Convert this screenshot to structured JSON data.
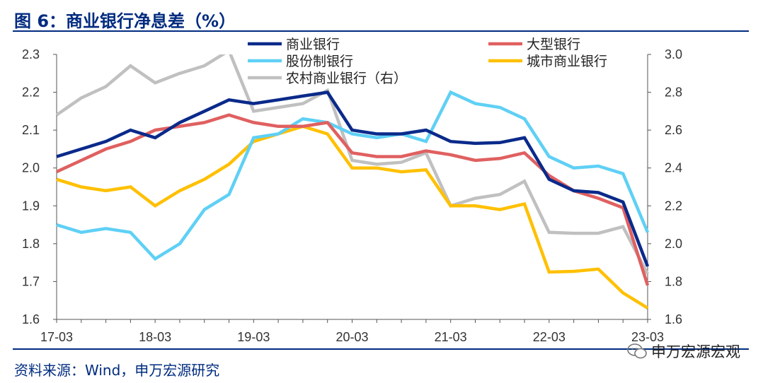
{
  "header": {
    "title": "图 6：商业银行净息差（%）"
  },
  "footer": {
    "source": "资料来源：Wind，申万宏源研究",
    "watermark": "申万宏源宏观"
  },
  "chart_data": {
    "type": "line",
    "x": [
      "17-03",
      "17-06",
      "17-09",
      "17-12",
      "18-03",
      "18-06",
      "18-09",
      "18-12",
      "19-03",
      "19-06",
      "19-09",
      "19-12",
      "20-03",
      "20-06",
      "20-09",
      "20-12",
      "21-03",
      "21-06",
      "21-09",
      "21-12",
      "22-03",
      "22-06",
      "22-09",
      "22-12",
      "23-03"
    ],
    "xticks": [
      "17-03",
      "18-03",
      "19-03",
      "20-03",
      "21-03",
      "22-03",
      "23-03"
    ],
    "y_left": {
      "ylim": [
        1.6,
        2.3
      ],
      "ticks": [
        "1.6",
        "1.7",
        "1.8",
        "1.9",
        "2.0",
        "2.1",
        "2.2",
        "2.3"
      ]
    },
    "y_right": {
      "ylim": [
        1.6,
        3.0
      ],
      "ticks": [
        "1.6",
        "1.8",
        "2.0",
        "2.2",
        "2.4",
        "2.6",
        "2.8",
        "3.0"
      ]
    },
    "legend_position": "top",
    "series": [
      {
        "name": "商业银行",
        "axis": "left",
        "color": "#0a2a8a",
        "values": [
          2.03,
          2.05,
          2.07,
          2.1,
          2.08,
          2.12,
          2.15,
          2.18,
          2.17,
          2.18,
          2.19,
          2.2,
          2.1,
          2.09,
          2.09,
          2.1,
          2.07,
          2.065,
          2.067,
          2.08,
          1.97,
          1.94,
          1.935,
          1.91,
          1.74
        ]
      },
      {
        "name": "大型银行",
        "axis": "left",
        "color": "#e06060",
        "values": [
          1.99,
          2.02,
          2.05,
          2.07,
          2.1,
          2.11,
          2.12,
          2.14,
          2.12,
          2.11,
          2.11,
          2.12,
          2.04,
          2.03,
          2.03,
          2.045,
          2.035,
          2.02,
          2.025,
          2.04,
          1.98,
          1.94,
          1.92,
          1.895,
          1.69
        ]
      },
      {
        "name": "股份制银行",
        "axis": "left",
        "color": "#5fd0f5",
        "values": [
          1.85,
          1.83,
          1.84,
          1.83,
          1.76,
          1.8,
          1.89,
          1.93,
          2.08,
          2.09,
          2.13,
          2.12,
          2.09,
          2.08,
          2.09,
          2.07,
          2.2,
          2.17,
          2.16,
          2.13,
          2.03,
          2.0,
          2.005,
          1.985,
          1.83
        ]
      },
      {
        "name": "城市商业银行",
        "axis": "left",
        "color": "#ffc000",
        "values": [
          1.97,
          1.95,
          1.94,
          1.95,
          1.9,
          1.94,
          1.97,
          2.01,
          2.07,
          2.09,
          2.11,
          2.09,
          2.0,
          2.0,
          1.99,
          1.995,
          1.9,
          1.9,
          1.89,
          1.905,
          1.725,
          1.727,
          1.733,
          1.67,
          1.63
        ]
      },
      {
        "name": "农村商业银行（右）",
        "axis": "right",
        "color": "#c0c0c0",
        "values": [
          2.68,
          2.77,
          2.83,
          2.94,
          2.85,
          2.9,
          2.94,
          3.02,
          2.7,
          2.72,
          2.74,
          2.81,
          2.44,
          2.42,
          2.43,
          2.48,
          2.2,
          2.24,
          2.26,
          2.33,
          2.06,
          2.055,
          2.055,
          2.09,
          1.84
        ]
      }
    ]
  }
}
